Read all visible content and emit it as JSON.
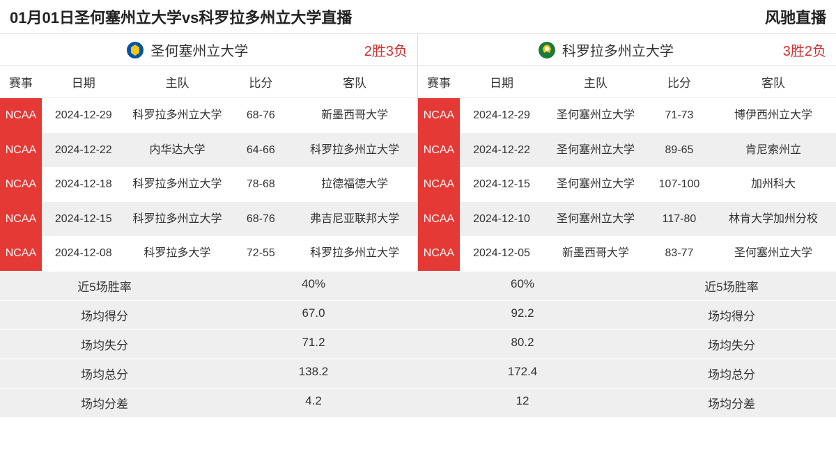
{
  "header": {
    "title": "01月01日圣何塞州立大学vs科罗拉多州立大学直播",
    "brand": "风驰直播"
  },
  "columns": {
    "league": "赛事",
    "date": "日期",
    "home": "主队",
    "score": "比分",
    "away": "客队"
  },
  "left": {
    "team_name": "圣何塞州立大学",
    "record": "2胜3负",
    "logo_colors": {
      "primary": "#0055a5",
      "accent": "#f5c518"
    },
    "rows": [
      {
        "league": "NCAA",
        "date": "2024-12-29",
        "home": "科罗拉多州立大学",
        "score": "68-76",
        "away": "新墨西哥大学"
      },
      {
        "league": "NCAA",
        "date": "2024-12-22",
        "home": "内华达大学",
        "score": "64-66",
        "away": "科罗拉多州立大学"
      },
      {
        "league": "NCAA",
        "date": "2024-12-18",
        "home": "科罗拉多州立大学",
        "score": "78-68",
        "away": "拉德福德大学"
      },
      {
        "league": "NCAA",
        "date": "2024-12-15",
        "home": "科罗拉多州立大学",
        "score": "68-76",
        "away": "弗吉尼亚联邦大学"
      },
      {
        "league": "NCAA",
        "date": "2024-12-08",
        "home": "科罗拉多大学",
        "score": "72-55",
        "away": "科罗拉多州立大学"
      }
    ]
  },
  "right": {
    "team_name": "科罗拉多州立大学",
    "record": "3胜2负",
    "logo_colors": {
      "primary": "#1e7a3c",
      "accent": "#f5c518"
    },
    "rows": [
      {
        "league": "NCAA",
        "date": "2024-12-29",
        "home": "圣何塞州立大学",
        "score": "71-73",
        "away": "博伊西州立大学"
      },
      {
        "league": "NCAA",
        "date": "2024-12-22",
        "home": "圣何塞州立大学",
        "score": "89-65",
        "away": "肯尼索州立"
      },
      {
        "league": "NCAA",
        "date": "2024-12-15",
        "home": "圣何塞州立大学",
        "score": "107-100",
        "away": "加州科大"
      },
      {
        "league": "NCAA",
        "date": "2024-12-10",
        "home": "圣何塞州立大学",
        "score": "117-80",
        "away": "林肯大学加州分校"
      },
      {
        "league": "NCAA",
        "date": "2024-12-05",
        "home": "新墨西哥大学",
        "score": "83-77",
        "away": "圣何塞州立大学"
      }
    ]
  },
  "stats": {
    "labels": {
      "win_rate": "近5场胜率",
      "avg_score": "场均得分",
      "avg_concede": "场均失分",
      "avg_total": "场均总分",
      "avg_diff": "场均分差"
    },
    "left_values": {
      "win_rate": "40%",
      "avg_score": "67.0",
      "avg_concede": "71.2",
      "avg_total": "138.2",
      "avg_diff": "4.2"
    },
    "right_values": {
      "win_rate": "60%",
      "avg_score": "92.2",
      "avg_concede": "80.2",
      "avg_total": "172.4",
      "avg_diff": "12"
    }
  },
  "colors": {
    "league_bg": "#e53935",
    "record_text": "#d32f2f",
    "row_alt": "#efefef",
    "border": "#dddddd"
  }
}
